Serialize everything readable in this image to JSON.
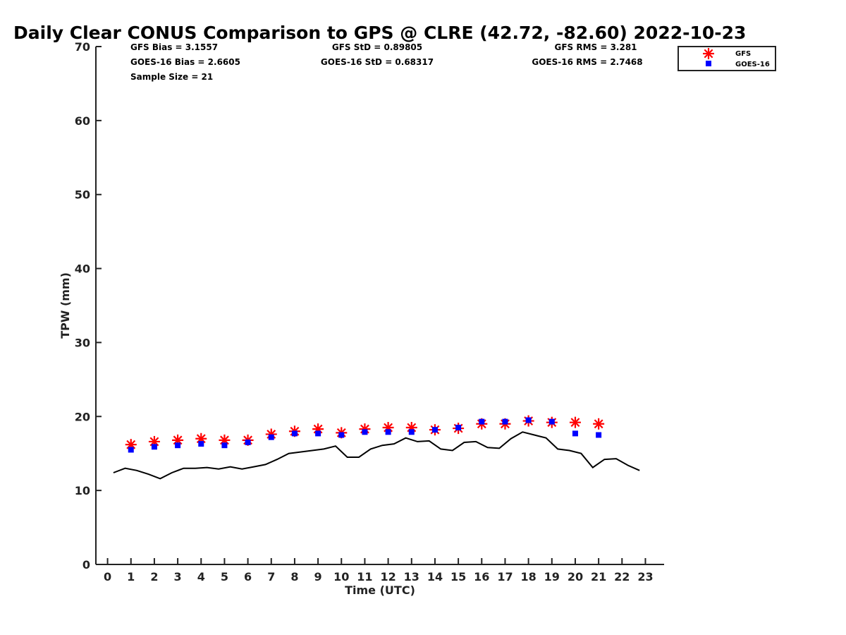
{
  "chart_data": {
    "type": "scatter",
    "title": "Daily Clear CONUS Comparison to GPS @ CLRE (42.72, -82.60) 2022-10-23",
    "xlabel": "Time (UTC)",
    "ylabel": "TPW (mm)",
    "xlim": [
      -0.5,
      23.8
    ],
    "ylim": [
      0,
      70
    ],
    "x_ticks": [
      0,
      1,
      2,
      3,
      4,
      5,
      6,
      7,
      8,
      9,
      10,
      11,
      12,
      13,
      14,
      15,
      16,
      17,
      18,
      19,
      20,
      21,
      22,
      23
    ],
    "y_ticks": [
      0,
      10,
      20,
      30,
      40,
      50,
      60,
      70
    ],
    "grid": false,
    "legend_position": "top-right",
    "stats": {
      "gfs_bias": "GFS Bias = 3.1557",
      "goes_bias": "GOES-16 Bias = 2.6605",
      "sample_size": "Sample Size = 21",
      "gfs_std": "GFS StD = 0.89805",
      "goes_std": "GOES-16 StD = 0.68317",
      "gfs_rms": "GFS RMS = 3.281",
      "goes_rms": "GOES-16 RMS = 2.7468"
    },
    "series": [
      {
        "name": "GFS",
        "marker": "asterisk",
        "color": "#ff0000",
        "x": [
          1,
          2,
          3,
          4,
          5,
          6,
          7,
          8,
          9,
          10,
          11,
          12,
          13,
          14,
          15,
          16,
          17,
          18,
          19,
          20,
          21
        ],
        "y": [
          16.2,
          16.6,
          16.8,
          17.0,
          16.8,
          16.8,
          17.6,
          18.0,
          18.3,
          17.8,
          18.3,
          18.5,
          18.5,
          18.2,
          18.4,
          19.0,
          19.0,
          19.4,
          19.2,
          19.2,
          19.0
        ]
      },
      {
        "name": "GOES-16",
        "marker": "square",
        "color": "#0000ff",
        "x": [
          1,
          2,
          3,
          4,
          5,
          6,
          7,
          8,
          9,
          10,
          11,
          12,
          13,
          14,
          15,
          16,
          17,
          18,
          19,
          20,
          21
        ],
        "y": [
          15.5,
          15.9,
          16.1,
          16.3,
          16.1,
          16.5,
          17.2,
          17.7,
          17.7,
          17.5,
          17.9,
          17.9,
          17.9,
          18.2,
          18.5,
          19.3,
          19.3,
          19.5,
          19.3,
          17.7,
          17.5
        ]
      },
      {
        "name": "GPS",
        "marker": "line",
        "color": "#000000",
        "x": [
          0.25,
          0.75,
          1.25,
          1.75,
          2.25,
          2.75,
          3.25,
          3.75,
          4.25,
          4.75,
          5.25,
          5.75,
          6.25,
          6.75,
          7.25,
          7.75,
          8.25,
          8.75,
          9.25,
          9.75,
          10.25,
          10.75,
          11.25,
          11.75,
          12.25,
          12.75,
          13.25,
          13.75,
          14.25,
          14.75,
          15.25,
          15.75,
          16.25,
          16.75,
          17.25,
          17.75,
          18.25,
          18.75,
          19.25,
          19.75,
          20.25,
          20.75,
          21.25,
          21.75,
          22.25,
          22.75
        ],
        "y": [
          12.4,
          13.0,
          12.7,
          12.2,
          11.6,
          12.4,
          13.0,
          13.0,
          13.1,
          12.9,
          13.2,
          12.9,
          13.2,
          13.5,
          14.2,
          15.0,
          15.2,
          15.4,
          15.6,
          16.0,
          14.5,
          14.5,
          15.6,
          16.1,
          16.3,
          17.1,
          16.6,
          16.7,
          15.6,
          15.4,
          16.5,
          16.6,
          15.8,
          15.7,
          17.0,
          17.9,
          17.5,
          17.1,
          15.6,
          15.4,
          15.0,
          13.1,
          14.2,
          14.3,
          13.4,
          12.7
        ]
      }
    ]
  }
}
